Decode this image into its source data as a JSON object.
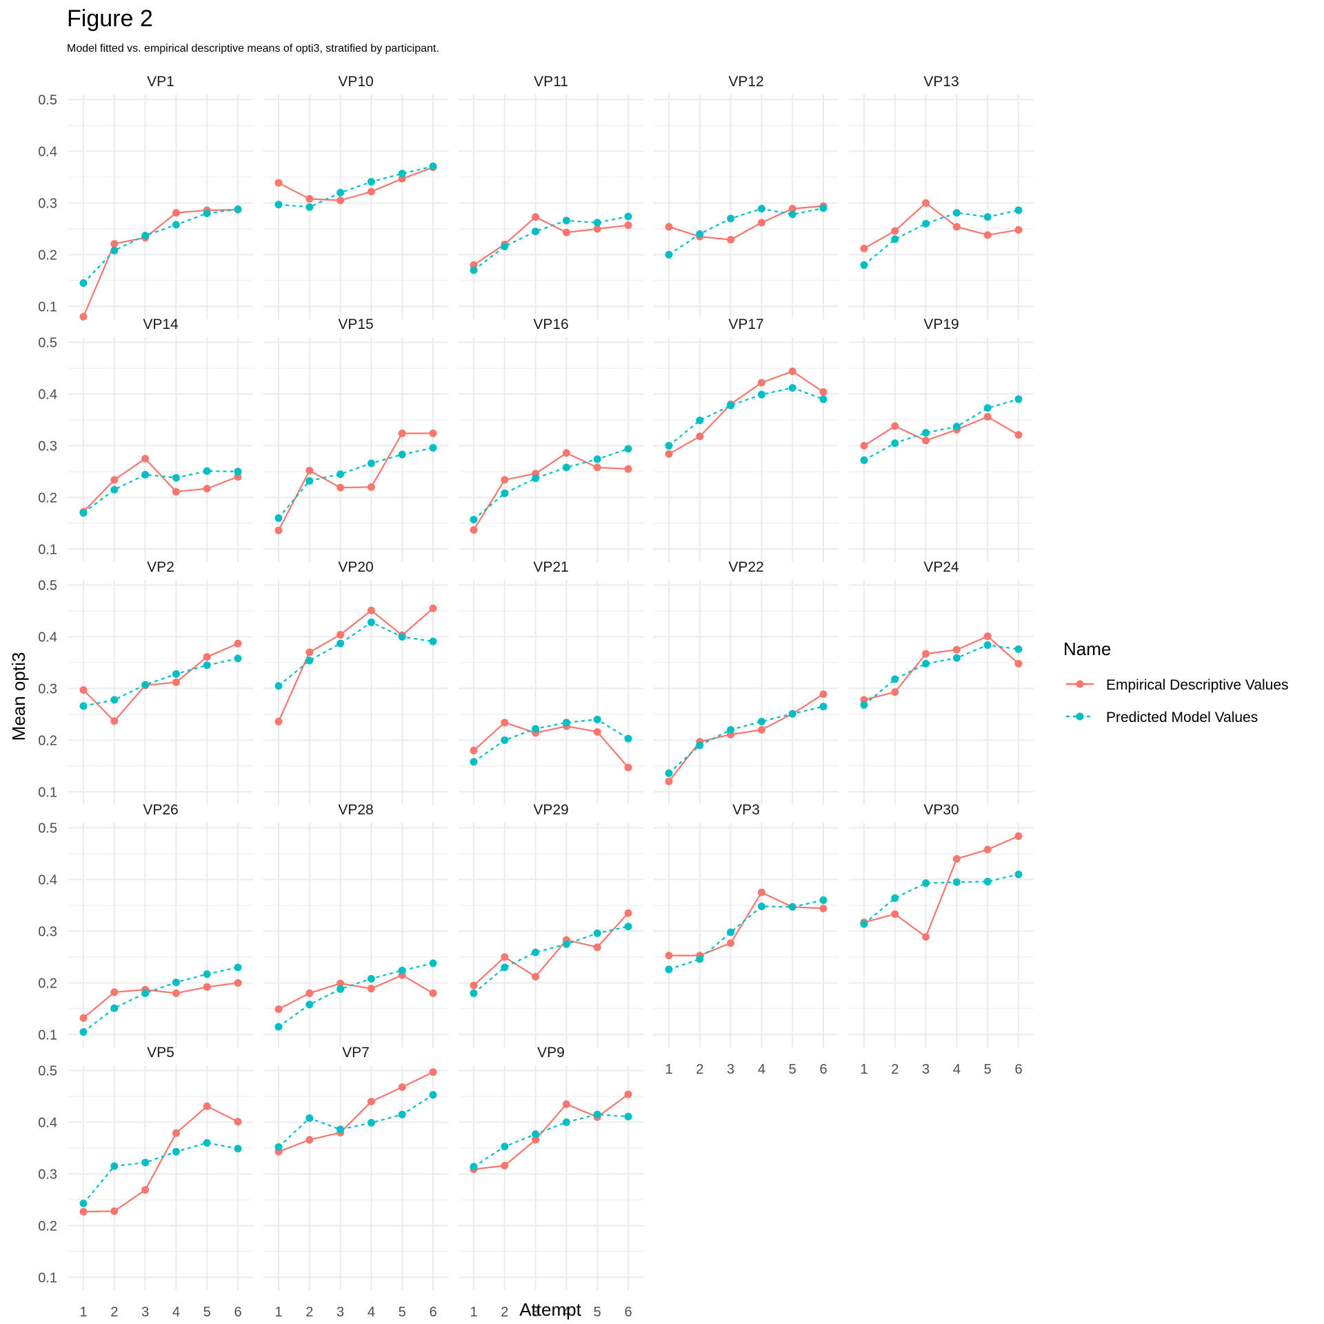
{
  "title": "Figure 2",
  "subtitle": "Model fitted vs. empirical descriptive means of opti3, stratified by participant.",
  "colors": {
    "empirical": "#F8766D",
    "predicted": "#00BFC4",
    "grid": "#EBEBEB",
    "axis_text": "#4D4D4D"
  },
  "chart_data": {
    "type": "line",
    "facet": "wrap",
    "xlabel": "Attempt",
    "ylabel": "Mean opti3",
    "x": [
      1,
      2,
      3,
      4,
      5,
      6
    ],
    "yticks": [
      "0.1",
      "0.2",
      "0.3",
      "0.4",
      "0.5"
    ],
    "ylim": [
      0.075,
      0.51
    ],
    "grid": true,
    "legend": {
      "title": "Name",
      "position": "right",
      "entries": [
        "Empirical Descriptive Values",
        "Predicted Model Values"
      ]
    },
    "panels": [
      {
        "label": "VP1",
        "empirical": [
          0.08,
          0.221,
          0.233,
          0.281,
          0.286,
          0.287
        ],
        "predicted": [
          0.145,
          0.208,
          0.237,
          0.258,
          0.28,
          0.288
        ]
      },
      {
        "label": "VP10",
        "empirical": [
          0.339,
          0.308,
          0.305,
          0.322,
          0.347,
          0.369
        ],
        "predicted": [
          0.297,
          0.292,
          0.32,
          0.341,
          0.357,
          0.371
        ]
      },
      {
        "label": "VP11",
        "empirical": [
          0.18,
          0.22,
          0.273,
          0.243,
          0.25,
          0.257
        ],
        "predicted": [
          0.17,
          0.216,
          0.245,
          0.266,
          0.262,
          0.274
        ]
      },
      {
        "label": "VP12",
        "empirical": [
          0.254,
          0.235,
          0.229,
          0.262,
          0.289,
          0.294
        ],
        "predicted": [
          0.2,
          0.24,
          0.27,
          0.289,
          0.278,
          0.29
        ]
      },
      {
        "label": "VP13",
        "empirical": [
          0.212,
          0.246,
          0.3,
          0.254,
          0.238,
          0.248
        ],
        "predicted": [
          0.18,
          0.23,
          0.26,
          0.281,
          0.273,
          0.286
        ]
      },
      {
        "label": "VP14",
        "empirical": [
          0.172,
          0.234,
          0.275,
          0.211,
          0.217,
          0.24
        ],
        "predicted": [
          0.17,
          0.215,
          0.244,
          0.238,
          0.251,
          0.25
        ]
      },
      {
        "label": "VP15",
        "empirical": [
          0.136,
          0.252,
          0.219,
          0.22,
          0.324,
          0.324
        ],
        "predicted": [
          0.16,
          0.232,
          0.245,
          0.266,
          0.283,
          0.296
        ]
      },
      {
        "label": "VP16",
        "empirical": [
          0.137,
          0.234,
          0.246,
          0.286,
          0.258,
          0.255
        ],
        "predicted": [
          0.157,
          0.208,
          0.237,
          0.258,
          0.274,
          0.294
        ]
      },
      {
        "label": "VP17",
        "empirical": [
          0.284,
          0.318,
          0.38,
          0.422,
          0.444,
          0.404
        ],
        "predicted": [
          0.3,
          0.349,
          0.378,
          0.399,
          0.412,
          0.39
        ]
      },
      {
        "label": "VP19",
        "empirical": [
          0.3,
          0.338,
          0.31,
          0.331,
          0.356,
          0.321
        ],
        "predicted": [
          0.272,
          0.305,
          0.325,
          0.337,
          0.373,
          0.39
        ]
      },
      {
        "label": "VP2",
        "empirical": [
          0.297,
          0.237,
          0.306,
          0.312,
          0.361,
          0.387
        ],
        "predicted": [
          0.266,
          0.278,
          0.307,
          0.328,
          0.345,
          0.358
        ]
      },
      {
        "label": "VP20",
        "empirical": [
          0.236,
          0.37,
          0.404,
          0.451,
          0.403,
          0.455
        ],
        "predicted": [
          0.305,
          0.354,
          0.387,
          0.428,
          0.4,
          0.391
        ]
      },
      {
        "label": "VP21",
        "empirical": [
          0.18,
          0.234,
          0.214,
          0.227,
          0.216,
          0.147
        ],
        "predicted": [
          0.158,
          0.2,
          0.222,
          0.234,
          0.24,
          0.203
        ]
      },
      {
        "label": "VP22",
        "empirical": [
          0.12,
          0.197,
          0.211,
          0.22,
          0.251,
          0.289
        ],
        "predicted": [
          0.136,
          0.19,
          0.22,
          0.236,
          0.251,
          0.265
        ]
      },
      {
        "label": "VP24",
        "empirical": [
          0.278,
          0.293,
          0.367,
          0.375,
          0.401,
          0.348
        ],
        "predicted": [
          0.268,
          0.318,
          0.348,
          0.359,
          0.384,
          0.376
        ]
      },
      {
        "label": "VP26",
        "empirical": [
          0.132,
          0.182,
          0.187,
          0.18,
          0.192,
          0.2
        ],
        "predicted": [
          0.105,
          0.151,
          0.18,
          0.201,
          0.217,
          0.23
        ]
      },
      {
        "label": "VP28",
        "empirical": [
          0.149,
          0.18,
          0.199,
          0.189,
          0.215,
          0.18
        ],
        "predicted": [
          0.115,
          0.158,
          0.188,
          0.208,
          0.224,
          0.238
        ]
      },
      {
        "label": "VP29",
        "empirical": [
          0.195,
          0.25,
          0.212,
          0.283,
          0.269,
          0.335
        ],
        "predicted": [
          0.18,
          0.23,
          0.259,
          0.275,
          0.296,
          0.309
        ]
      },
      {
        "label": "VP3",
        "empirical": [
          0.253,
          0.253,
          0.277,
          0.375,
          0.347,
          0.344
        ],
        "predicted": [
          0.226,
          0.246,
          0.298,
          0.348,
          0.347,
          0.36
        ]
      },
      {
        "label": "VP30",
        "empirical": [
          0.317,
          0.333,
          0.289,
          0.44,
          0.458,
          0.484
        ],
        "predicted": [
          0.314,
          0.364,
          0.393,
          0.395,
          0.396,
          0.41
        ]
      },
      {
        "label": "VP5",
        "empirical": [
          0.227,
          0.228,
          0.269,
          0.379,
          0.431,
          0.401
        ],
        "predicted": [
          0.243,
          0.315,
          0.322,
          0.343,
          0.36,
          0.349
        ]
      },
      {
        "label": "VP7",
        "empirical": [
          0.343,
          0.366,
          0.38,
          0.44,
          0.468,
          0.497
        ],
        "predicted": [
          0.352,
          0.408,
          0.386,
          0.399,
          0.415,
          0.453
        ]
      },
      {
        "label": "VP9",
        "empirical": [
          0.309,
          0.316,
          0.366,
          0.435,
          0.41,
          0.454
        ],
        "predicted": [
          0.314,
          0.353,
          0.377,
          0.4,
          0.415,
          0.411
        ]
      }
    ]
  }
}
